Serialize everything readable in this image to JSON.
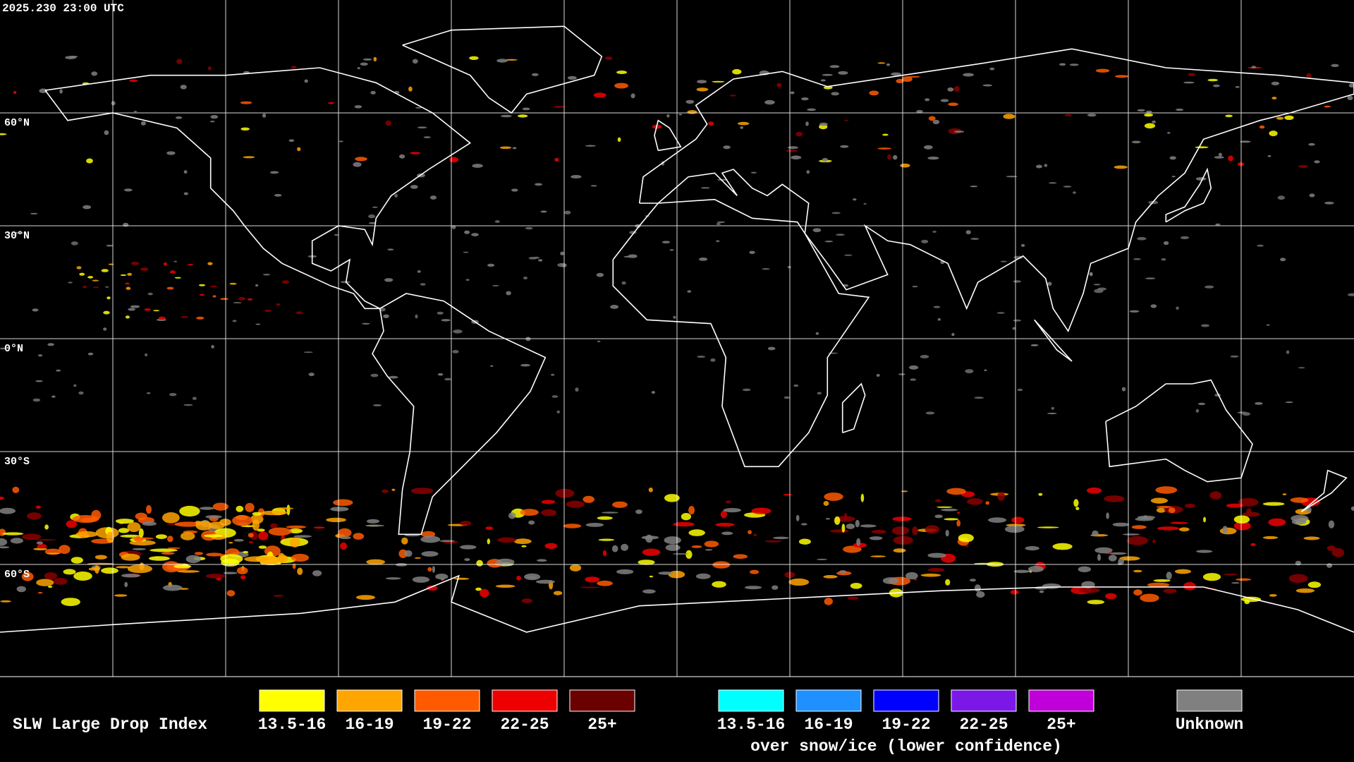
{
  "header": {
    "timestamp": "2025.230 23:00 UTC"
  },
  "grid": {
    "lat_labels": [
      "60°N",
      "30°N",
      "0°N",
      "30°S",
      "60°S"
    ]
  },
  "legend": {
    "title": "SLW Large Drop Index",
    "items": [
      {
        "label": "13.5-16",
        "color": "#ffff00"
      },
      {
        "label": "16-19",
        "color": "#ffa500"
      },
      {
        "label": "19-22",
        "color": "#ff5a00"
      },
      {
        "label": "22-25",
        "color": "#ee0000"
      },
      {
        "label": "25+",
        "color": "#6a0000"
      }
    ],
    "snow_items": [
      {
        "label": "13.5-16",
        "color": "#00ffff"
      },
      {
        "label": "16-19",
        "color": "#1e90ff"
      },
      {
        "label": "19-22",
        "color": "#0000ff"
      },
      {
        "label": "22-25",
        "color": "#7b18e8"
      },
      {
        "label": "25+",
        "color": "#c000d8"
      }
    ],
    "snow_caption": "over snow/ice (lower confidence)",
    "unknown": {
      "label": "Unknown",
      "color": "#808080"
    }
  }
}
